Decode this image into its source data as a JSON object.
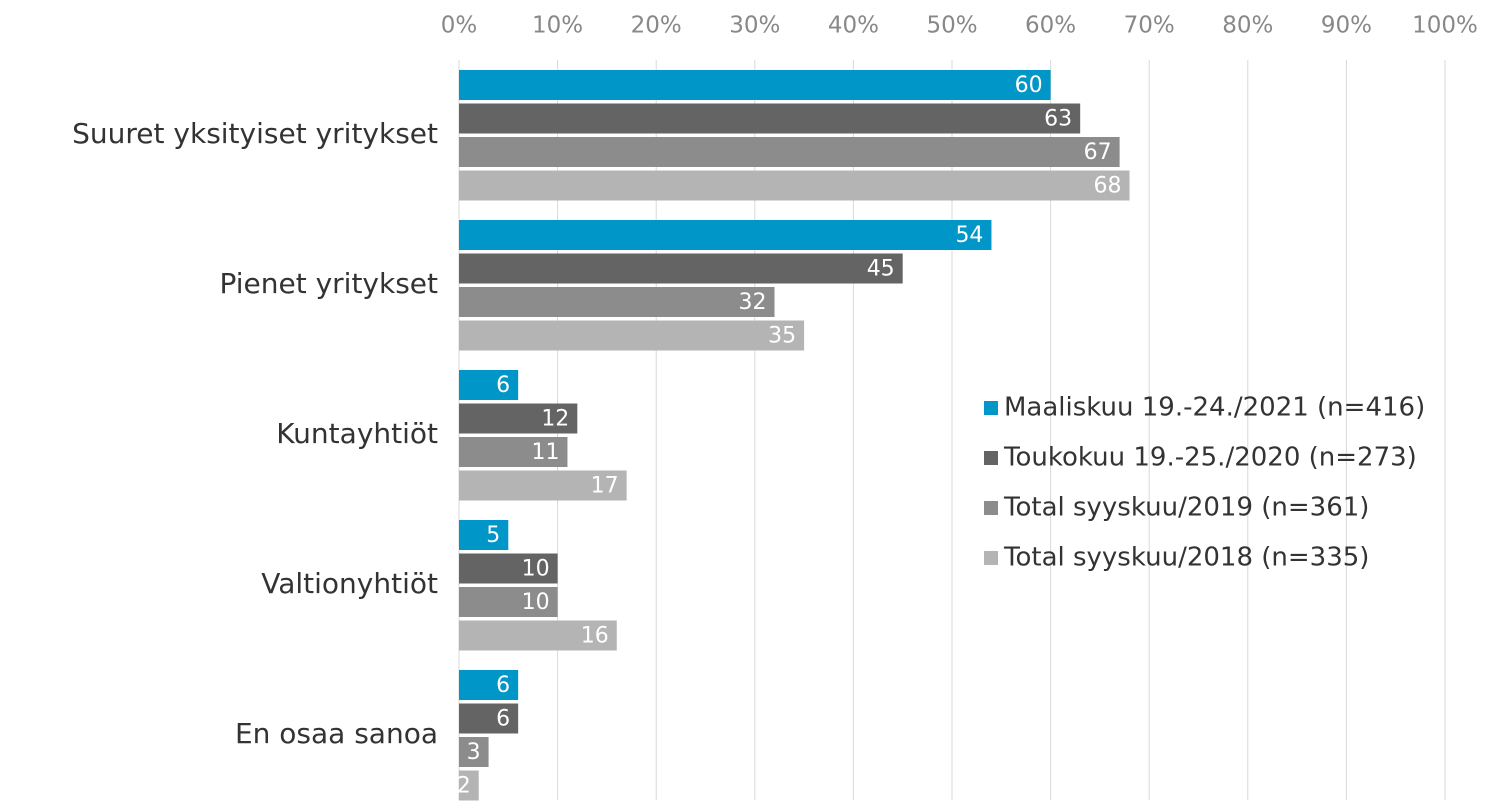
{
  "chart_data": {
    "type": "bar",
    "categories": [
      "Suuret yksityiset yritykset",
      "Pienet yritykset",
      "Kuntayhtiöt",
      "Valtionyhtiöt",
      "En osaa sanoa"
    ],
    "series": [
      {
        "name": "Maaliskuu 19.-24./2021 (n=416)",
        "color": "#0096c8",
        "values": [
          60,
          54,
          6,
          5,
          6
        ]
      },
      {
        "name": "Toukokuu 19.-25./2020 (n=273)",
        "color": "#646464",
        "values": [
          63,
          45,
          12,
          10,
          6
        ]
      },
      {
        "name": "Total syyskuu/2019 (n=361)",
        "color": "#8c8c8c",
        "values": [
          67,
          32,
          11,
          10,
          3
        ]
      },
      {
        "name": "Total syyskuu/2018 (n=335)",
        "color": "#b4b4b4",
        "values": [
          68,
          35,
          17,
          16,
          2
        ]
      }
    ],
    "xlim": [
      0,
      100
    ],
    "xticks": [
      {
        "value": 0,
        "label": "0%"
      },
      {
        "value": 10,
        "label": "10%"
      },
      {
        "value": 20,
        "label": "20%"
      },
      {
        "value": 30,
        "label": "30%"
      },
      {
        "value": 40,
        "label": "40%"
      },
      {
        "value": 50,
        "label": "50%"
      },
      {
        "value": 60,
        "label": "60%"
      },
      {
        "value": 70,
        "label": "70%"
      },
      {
        "value": 80,
        "label": "80%"
      },
      {
        "value": 90,
        "label": "90%"
      },
      {
        "value": 100,
        "label": "100%"
      }
    ],
    "grid": true
  }
}
